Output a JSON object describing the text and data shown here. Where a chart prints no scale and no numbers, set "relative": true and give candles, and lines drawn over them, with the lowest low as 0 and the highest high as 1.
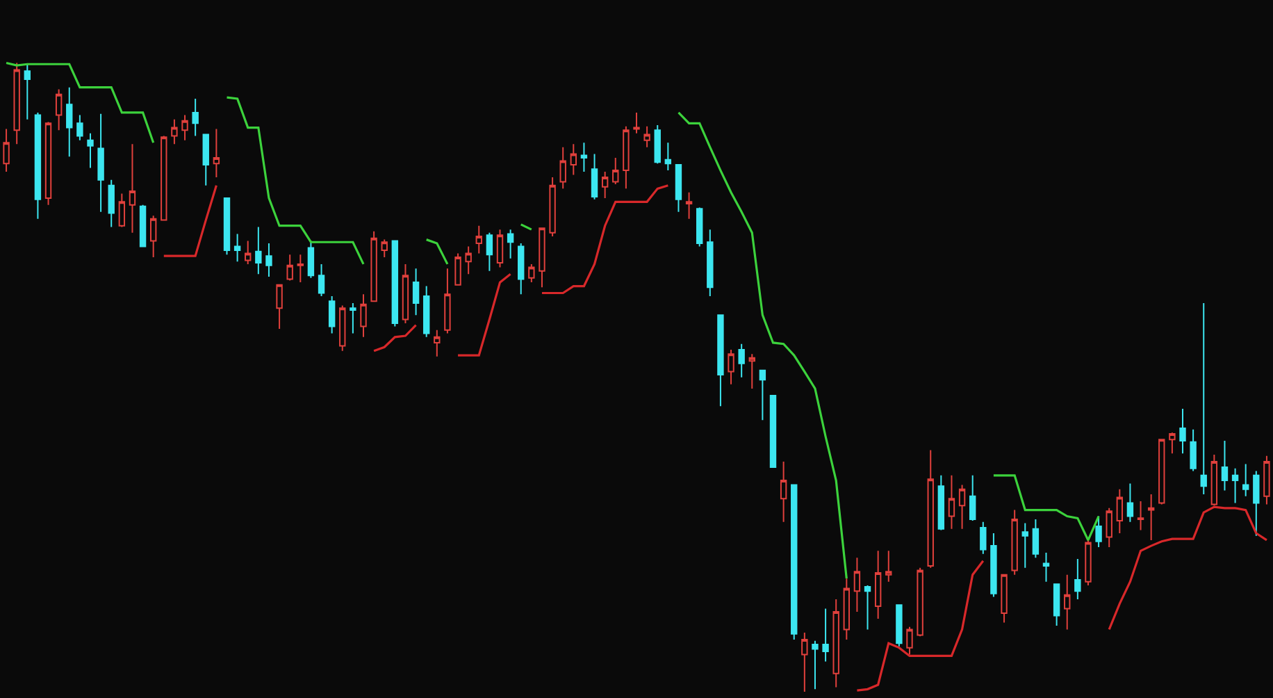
{
  "chart_data": {
    "type": "candlestick",
    "relative": true,
    "categories": [
      null,
      null,
      null,
      null,
      null,
      null,
      null,
      null,
      null,
      null,
      null,
      null,
      null,
      null,
      null,
      null,
      null,
      null,
      null,
      null,
      null,
      null,
      null,
      null,
      null,
      null,
      null,
      null,
      null,
      null,
      null,
      null,
      null,
      null,
      null,
      null,
      null,
      null,
      null,
      null,
      null,
      null,
      null,
      null,
      null,
      null,
      null,
      null,
      null,
      null,
      null,
      null,
      null,
      null,
      null,
      null,
      null,
      null,
      null,
      null,
      null,
      null,
      null,
      null,
      null,
      null,
      null,
      null,
      null,
      null,
      null,
      null,
      null,
      null,
      null,
      null,
      null,
      null,
      null,
      null,
      null,
      null,
      null,
      null,
      null,
      null,
      null,
      null,
      null,
      null,
      null,
      null,
      null,
      null,
      null,
      null,
      null,
      null,
      null,
      null,
      null,
      null,
      null,
      null,
      null,
      null,
      null,
      null,
      null,
      null,
      null,
      null,
      null,
      null,
      null,
      null,
      null,
      null,
      null,
      null,
      null
    ],
    "ohlc": [
      [
        0.84,
        0.895,
        0.827,
        0.873
      ],
      [
        0.893,
        1.0,
        0.871,
        0.989
      ],
      [
        0.987,
        0.998,
        0.91,
        0.974
      ],
      [
        0.917,
        0.921,
        0.752,
        0.783
      ],
      [
        0.785,
        0.906,
        0.774,
        0.904
      ],
      [
        0.917,
        0.958,
        0.893,
        0.95
      ],
      [
        0.934,
        0.961,
        0.851,
        0.897
      ],
      [
        0.904,
        0.917,
        0.877,
        0.884
      ],
      [
        0.877,
        0.888,
        0.833,
        0.868
      ],
      [
        0.864,
        0.919,
        0.763,
        0.814
      ],
      [
        0.805,
        0.814,
        0.739,
        0.761
      ],
      [
        0.741,
        0.792,
        0.739,
        0.779
      ],
      [
        0.774,
        0.871,
        0.73,
        0.796
      ],
      [
        0.772,
        0.774,
        0.708,
        0.708
      ],
      [
        0.717,
        0.757,
        0.691,
        0.752
      ],
      [
        0.75,
        0.884,
        0.75,
        0.882
      ],
      [
        0.884,
        0.91,
        0.871,
        0.897
      ],
      [
        0.893,
        0.917,
        0.877,
        0.908
      ],
      [
        0.921,
        0.943,
        0.884,
        0.904
      ],
      [
        0.886,
        0.886,
        0.805,
        0.838
      ],
      [
        0.84,
        0.895,
        0.818,
        0.849
      ],
      [
        0.785,
        0.785,
        0.695,
        0.702
      ],
      [
        0.708,
        0.728,
        0.684,
        0.702
      ],
      [
        0.686,
        0.717,
        0.68,
        0.697
      ],
      [
        0.7,
        0.739,
        0.664,
        0.682
      ],
      [
        0.693,
        0.713,
        0.66,
        0.678
      ],
      [
        0.61,
        0.647,
        0.577,
        0.647
      ],
      [
        0.656,
        0.695,
        0.654,
        0.678
      ],
      [
        0.678,
        0.695,
        0.651,
        0.68
      ],
      [
        0.706,
        0.717,
        0.658,
        0.662
      ],
      [
        0.662,
        0.68,
        0.629,
        0.634
      ],
      [
        0.621,
        0.629,
        0.57,
        0.581
      ],
      [
        0.55,
        0.614,
        0.542,
        0.61
      ],
      [
        0.61,
        0.618,
        0.57,
        0.607
      ],
      [
        0.581,
        0.632,
        0.564,
        0.616
      ],
      [
        0.621,
        0.732,
        0.621,
        0.721
      ],
      [
        0.702,
        0.719,
        0.691,
        0.715
      ],
      [
        0.717,
        0.717,
        0.581,
        0.586
      ],
      [
        0.592,
        0.68,
        0.586,
        0.662
      ],
      [
        0.651,
        0.673,
        0.599,
        0.618
      ],
      [
        0.629,
        0.645,
        0.564,
        0.57
      ],
      [
        0.555,
        0.575,
        0.533,
        0.564
      ],
      [
        0.575,
        0.673,
        0.57,
        0.632
      ],
      [
        0.647,
        0.697,
        0.647,
        0.691
      ],
      [
        0.684,
        0.708,
        0.664,
        0.697
      ],
      [
        0.713,
        0.741,
        0.697,
        0.724
      ],
      [
        0.726,
        0.73,
        0.669,
        0.695
      ],
      [
        0.682,
        0.735,
        0.675,
        0.726
      ],
      [
        0.728,
        0.735,
        0.689,
        0.715
      ],
      [
        0.708,
        0.713,
        0.632,
        0.656
      ],
      [
        0.658,
        0.68,
        0.651,
        0.675
      ],
      [
        0.669,
        0.737,
        0.643,
        0.737
      ],
      [
        0.73,
        0.818,
        0.724,
        0.805
      ],
      [
        0.811,
        0.866,
        0.8,
        0.844
      ],
      [
        0.838,
        0.871,
        0.822,
        0.855
      ],
      [
        0.853,
        0.873,
        0.827,
        0.849
      ],
      [
        0.831,
        0.855,
        0.783,
        0.787
      ],
      [
        0.803,
        0.827,
        0.785,
        0.818
      ],
      [
        0.811,
        0.849,
        0.807,
        0.829
      ],
      [
        0.829,
        0.899,
        0.8,
        0.893
      ],
      [
        0.895,
        0.921,
        0.888,
        0.897
      ],
      [
        0.877,
        0.899,
        0.866,
        0.886
      ],
      [
        0.893,
        0.901,
        0.84,
        0.842
      ],
      [
        0.846,
        0.873,
        0.829,
        0.84
      ],
      [
        0.838,
        0.838,
        0.763,
        0.783
      ],
      [
        0.776,
        0.794,
        0.752,
        0.779
      ],
      [
        0.768,
        0.77,
        0.708,
        0.713
      ],
      [
        0.715,
        0.735,
        0.629,
        0.643
      ],
      [
        0.599,
        0.599,
        0.454,
        0.504
      ],
      [
        0.509,
        0.544,
        0.489,
        0.537
      ],
      [
        0.544,
        0.553,
        0.5,
        0.522
      ],
      [
        0.526,
        0.537,
        0.482,
        0.531
      ],
      [
        0.511,
        0.511,
        0.432,
        0.496
      ],
      [
        0.471,
        0.471,
        0.357,
        0.357
      ],
      [
        0.307,
        0.366,
        0.27,
        0.336
      ],
      [
        0.329,
        0.329,
        0.083,
        0.092
      ],
      [
        0.059,
        0.094,
        0.0,
        0.083
      ],
      [
        0.075,
        0.081,
        0.004,
        0.068
      ],
      [
        0.075,
        0.132,
        0.048,
        0.064
      ],
      [
        0.029,
        0.147,
        0.007,
        0.127
      ],
      [
        0.099,
        0.18,
        0.083,
        0.164
      ],
      [
        0.16,
        0.213,
        0.127,
        0.191
      ],
      [
        0.167,
        0.169,
        0.099,
        0.16
      ],
      [
        0.136,
        0.224,
        0.116,
        0.189
      ],
      [
        0.186,
        0.224,
        0.175,
        0.191
      ],
      [
        0.138,
        0.138,
        0.072,
        0.077
      ],
      [
        0.07,
        0.103,
        0.059,
        0.099
      ],
      [
        0.09,
        0.197,
        0.088,
        0.193
      ],
      [
        0.2,
        0.384,
        0.197,
        0.338
      ],
      [
        0.327,
        0.344,
        0.257,
        0.259
      ],
      [
        0.279,
        0.344,
        0.259,
        0.307
      ],
      [
        0.296,
        0.329,
        0.259,
        0.322
      ],
      [
        0.311,
        0.344,
        0.272,
        0.274
      ],
      [
        0.261,
        0.27,
        0.219,
        0.226
      ],
      [
        0.232,
        0.252,
        0.151,
        0.156
      ],
      [
        0.125,
        0.186,
        0.11,
        0.186
      ],
      [
        0.193,
        0.289,
        0.186,
        0.274
      ],
      [
        0.254,
        0.268,
        0.197,
        0.248
      ],
      [
        0.259,
        0.274,
        0.213,
        0.219
      ],
      [
        0.204,
        0.221,
        0.175,
        0.2
      ],
      [
        0.171,
        0.171,
        0.105,
        0.121
      ],
      [
        0.132,
        0.186,
        0.099,
        0.154
      ],
      [
        0.178,
        0.211,
        0.147,
        0.16
      ],
      [
        0.175,
        0.241,
        0.169,
        0.237
      ],
      [
        0.263,
        0.279,
        0.23,
        0.239
      ],
      [
        0.246,
        0.292,
        0.23,
        0.287
      ],
      [
        0.272,
        0.322,
        0.252,
        0.309
      ],
      [
        0.3,
        0.331,
        0.27,
        0.279
      ],
      [
        0.274,
        0.303,
        0.257,
        0.276
      ],
      [
        0.289,
        0.314,
        0.241,
        0.292
      ],
      [
        0.3,
        0.401,
        0.298,
        0.401
      ],
      [
        0.401,
        0.412,
        0.379,
        0.41
      ],
      [
        0.419,
        0.45,
        0.379,
        0.399
      ],
      [
        0.397,
        0.417,
        0.351,
        0.355
      ],
      [
        0.344,
        0.618,
        0.314,
        0.327
      ],
      [
        0.298,
        0.377,
        0.296,
        0.366
      ],
      [
        0.357,
        0.399,
        0.32,
        0.336
      ],
      [
        0.344,
        0.355,
        0.3,
        0.336
      ],
      [
        0.329,
        0.362,
        0.311,
        0.322
      ],
      [
        0.344,
        0.351,
        0.248,
        0.3
      ],
      [
        0.311,
        0.375,
        0.298,
        0.366
      ]
    ],
    "series": [
      {
        "type": "line",
        "color": "#3cd23c",
        "values": [
          1.0,
          0.996,
          0.998,
          0.998,
          0.998,
          0.998,
          0.998,
          0.961,
          0.961,
          0.961,
          0.961,
          0.921,
          0.921,
          0.921,
          0.873,
          null,
          null,
          null,
          null,
          null,
          null,
          0.945,
          0.943,
          0.897,
          0.897,
          0.785,
          0.741,
          0.741,
          0.741,
          0.715,
          0.715,
          0.715,
          0.715,
          0.715,
          0.68,
          null,
          null,
          null,
          null,
          null,
          0.719,
          0.713,
          0.68,
          null,
          null,
          null,
          null,
          null,
          null,
          0.743,
          0.735,
          null,
          null,
          null,
          null,
          null,
          null,
          null,
          null,
          null,
          null,
          null,
          null,
          null,
          0.921,
          0.904,
          0.904,
          0.866,
          0.829,
          0.794,
          0.763,
          0.73,
          0.599,
          0.555,
          0.553,
          0.535,
          0.509,
          0.482,
          0.406,
          0.336,
          0.18,
          null,
          null,
          null,
          null,
          null,
          null,
          null,
          null,
          null,
          null,
          null,
          null,
          null,
          0.344,
          0.344,
          0.344,
          0.289,
          0.289,
          0.289,
          0.289,
          0.279,
          0.276,
          0.241,
          0.279,
          null,
          null,
          null,
          null,
          null,
          null,
          null,
          null,
          null,
          null,
          null,
          null,
          null,
          null,
          null,
          null
        ]
      },
      {
        "type": "line",
        "color": "#d8282a",
        "values": [
          null,
          null,
          null,
          null,
          null,
          null,
          null,
          null,
          null,
          null,
          null,
          null,
          null,
          null,
          null,
          0.693,
          0.693,
          0.693,
          0.693,
          0.75,
          0.805,
          null,
          null,
          null,
          null,
          null,
          null,
          null,
          null,
          null,
          null,
          null,
          null,
          null,
          null,
          0.542,
          0.548,
          0.564,
          0.566,
          0.583,
          null,
          null,
          null,
          0.535,
          0.535,
          0.535,
          0.592,
          0.651,
          0.664,
          null,
          null,
          0.634,
          0.634,
          0.634,
          0.645,
          0.645,
          0.68,
          0.741,
          0.779,
          0.779,
          0.779,
          0.779,
          0.8,
          0.805,
          null,
          null,
          null,
          null,
          null,
          null,
          null,
          null,
          null,
          null,
          null,
          null,
          null,
          null,
          null,
          null,
          null,
          0.002,
          0.004,
          0.011,
          0.077,
          0.07,
          0.057,
          0.057,
          0.057,
          0.057,
          0.057,
          0.099,
          0.186,
          0.208,
          null,
          null,
          null,
          null,
          null,
          null,
          null,
          null,
          null,
          null,
          null,
          0.099,
          0.14,
          0.175,
          0.224,
          0.232,
          0.239,
          0.243,
          0.243,
          0.243,
          0.285,
          0.294,
          0.292,
          0.292,
          0.289,
          0.252,
          0.241
        ]
      }
    ]
  }
}
